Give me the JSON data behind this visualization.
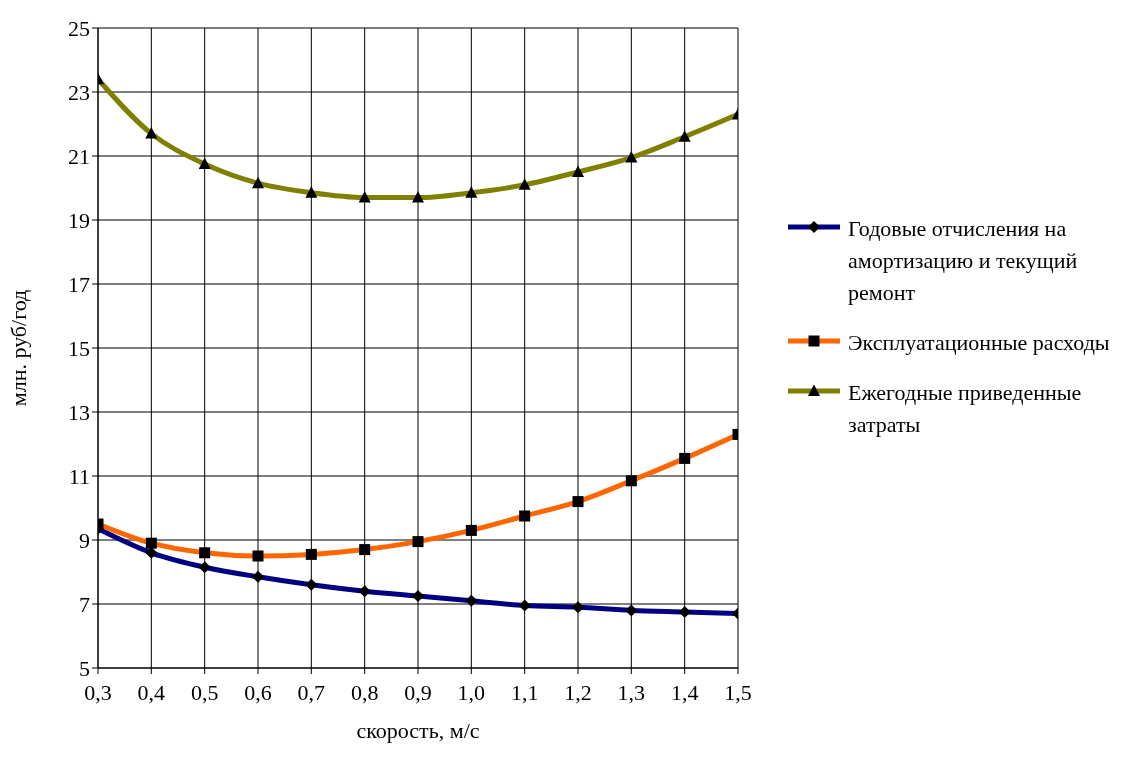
{
  "chart_data": {
    "type": "line",
    "xlabel": "скорость, м/с",
    "ylabel": "млн. руб/год",
    "categories": [
      "0,3",
      "0,4",
      "0,5",
      "0,6",
      "0,7",
      "0,8",
      "0,9",
      "1,0",
      "1,1",
      "1,2",
      "1,3",
      "1,4",
      "1,5"
    ],
    "series": [
      {
        "name": "Годовые отчисления на амортизацию и текущий ремонт",
        "color": "#000080",
        "marker": "diamond",
        "values": [
          9.35,
          8.6,
          8.15,
          7.85,
          7.6,
          7.4,
          7.25,
          7.1,
          6.95,
          6.9,
          6.8,
          6.75,
          6.7
        ]
      },
      {
        "name": "Эксплуатационные расходы",
        "color": "#ff6600",
        "marker": "square",
        "values": [
          9.5,
          8.9,
          8.6,
          8.5,
          8.55,
          8.7,
          8.95,
          9.3,
          9.75,
          10.2,
          10.85,
          11.55,
          12.3
        ]
      },
      {
        "name": "Ежегодные приведенные затраты",
        "color": "#808000",
        "marker": "triangle",
        "values": [
          23.4,
          21.7,
          20.75,
          20.15,
          19.85,
          19.7,
          19.7,
          19.85,
          20.1,
          20.5,
          20.95,
          21.6,
          22.3
        ]
      }
    ],
    "ylim": [
      5,
      25
    ],
    "yticks": [
      5,
      7,
      9,
      11,
      13,
      15,
      17,
      19,
      21,
      23,
      25
    ],
    "grid": true,
    "legend": "right"
  }
}
